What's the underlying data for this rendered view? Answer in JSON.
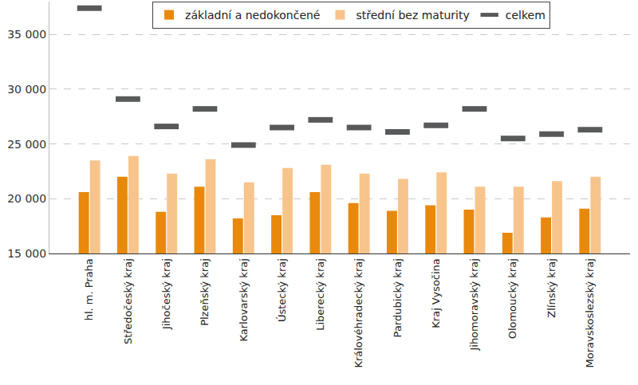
{
  "chart_data": {
    "type": "bar",
    "categories": [
      "hl. m. Praha",
      "Středočeský kraj",
      "Jihočeský kraj",
      "Plzeňský kraj",
      "Karlovarský kraj",
      "Ústecký kraj",
      "Liberecký kraj",
      "Královéhradecký kraj",
      "Pardubický kraj",
      "Kraj Vysočina",
      "Jihomoravský kraj",
      "Olomoucký kraj",
      "Zlínský kraj",
      "Moravskoslezský kraj"
    ],
    "series": [
      {
        "name": "základní a nedokončené",
        "color": "#e8890c",
        "type": "bar",
        "values": [
          20600,
          22000,
          18800,
          21100,
          18200,
          18500,
          20600,
          19600,
          18900,
          19400,
          19000,
          16900,
          18300,
          19100
        ]
      },
      {
        "name": "střední bez maturity",
        "color": "#f7c48c",
        "type": "bar",
        "values": [
          23500,
          23900,
          22300,
          23600,
          21500,
          22800,
          23100,
          22300,
          21800,
          22400,
          21100,
          21100,
          21600,
          22000
        ]
      },
      {
        "name": "celkem",
        "color": "#58595b",
        "type": "scatter",
        "marker": "dash",
        "values": [
          37400,
          29100,
          26600,
          28200,
          24900,
          26500,
          27200,
          26500,
          26100,
          26700,
          28200,
          25500,
          25900,
          26300
        ]
      }
    ],
    "ylim": [
      15000,
      38000
    ],
    "yticks": [
      {
        "value": 15000,
        "label": "15 000"
      },
      {
        "value": 20000,
        "label": "20 000"
      },
      {
        "value": 25000,
        "label": "25 000"
      },
      {
        "value": 30000,
        "label": "30 000"
      },
      {
        "value": 35000,
        "label": "35 000"
      }
    ],
    "grid": true,
    "legend": "top"
  }
}
